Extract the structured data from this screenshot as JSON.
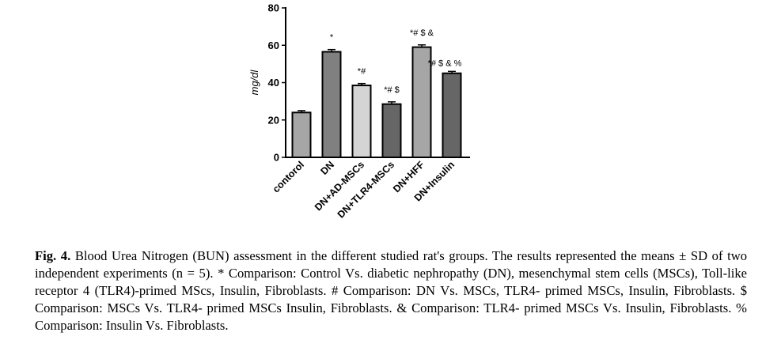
{
  "chart_data": {
    "type": "bar",
    "ylabel": "mg/dl",
    "ylim": [
      0,
      80
    ],
    "yticks": [
      "0",
      "20",
      "40",
      "60",
      "80"
    ],
    "categories": [
      "contorol",
      "DN",
      "DN+AD-MSCs",
      "DN+TLR4-MSCs",
      "DN+HFF",
      "DN+Insulin"
    ],
    "values": [
      24,
      56.5,
      38.5,
      28.5,
      59,
      45
    ],
    "errors": [
      1,
      1.2,
      1,
      1.2,
      1.2,
      1
    ],
    "colors": [
      "#a6a6a6",
      "#808080",
      "#d4d4d4",
      "#666666",
      "#a6a6a6",
      "#666666"
    ],
    "annotations": [
      "",
      "*",
      "*#",
      "*# $",
      "*# $ &",
      "*# $ & %"
    ],
    "grid": false
  },
  "caption": {
    "label": "Fig. 4.",
    "text": "Blood Urea Nitrogen (BUN) assessment in the different studied rat's groups. The results represented the means ± SD of two independent experiments (n = 5). * Comparison: Control Vs. diabetic nephropathy (DN), mesenchymal stem cells (MSCs), Toll-like receptor 4 (TLR4)-primed MScs, Insulin, Fibroblasts. # Comparison: DN Vs. MSCs, TLR4- primed MSCs, Insulin, Fibroblasts. $ Comparison: MSCs Vs. TLR4- primed MSCs Insulin, Fibroblasts. & Comparison: TLR4- primed MSCs Vs. Insulin, Fibroblasts. % Comparison: Insulin Vs. Fibroblasts."
  }
}
